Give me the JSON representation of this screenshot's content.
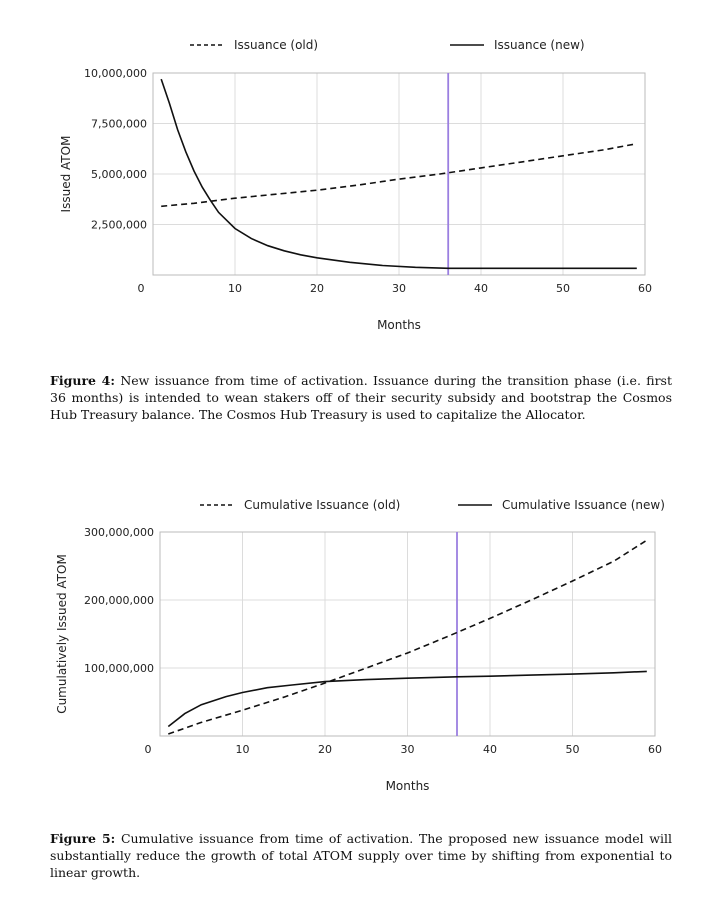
{
  "chart_data": [
    {
      "type": "line",
      "xlabel": "Months",
      "ylabel": "Issued ATOM",
      "xlim": [
        0,
        60
      ],
      "ylim": [
        0,
        10000000
      ],
      "x_ticks": [
        "0",
        "10",
        "20",
        "30",
        "40",
        "50",
        "60"
      ],
      "y_ticks": [
        "2,500,000",
        "5,000,000",
        "7,500,000",
        "10,000,000"
      ],
      "marker_line": {
        "x": 36,
        "color": "#9b7fe0"
      },
      "legend_position": "top",
      "series": [
        {
          "name": "Issuance (old)",
          "style": "dashed",
          "x": [
            1,
            5,
            10,
            15,
            20,
            25,
            30,
            35,
            40,
            45,
            50,
            55,
            59
          ],
          "y": [
            3400000,
            3550000,
            3800000,
            4000000,
            4200000,
            4450000,
            4750000,
            5000000,
            5300000,
            5600000,
            5900000,
            6200000,
            6500000
          ]
        },
        {
          "name": "Issuance (new)",
          "style": "solid",
          "x": [
            1,
            2,
            3,
            4,
            5,
            6,
            7,
            8,
            10,
            12,
            14,
            16,
            18,
            20,
            24,
            28,
            32,
            36,
            40,
            50,
            59
          ],
          "y": [
            9700000,
            8500000,
            7200000,
            6100000,
            5150000,
            4350000,
            3700000,
            3100000,
            2300000,
            1800000,
            1450000,
            1200000,
            1000000,
            850000,
            630000,
            470000,
            380000,
            330000,
            330000,
            330000,
            330000
          ]
        }
      ]
    },
    {
      "type": "line",
      "xlabel": "Months",
      "ylabel": "Cumulatively Issued ATOM",
      "xlim": [
        0,
        60
      ],
      "ylim": [
        0,
        300000000
      ],
      "x_ticks": [
        "0",
        "10",
        "20",
        "30",
        "40",
        "50",
        "60"
      ],
      "y_ticks": [
        "100,000,000",
        "200,000,000",
        "300,000,000"
      ],
      "marker_line": {
        "x": 36,
        "color": "#9b7fe0"
      },
      "legend_position": "top",
      "series": [
        {
          "name": "Cumulative Issuance (old)",
          "style": "dashed",
          "x": [
            1,
            5,
            10,
            15,
            20,
            25,
            30,
            35,
            40,
            45,
            50,
            55,
            59
          ],
          "y": [
            3000000,
            20000000,
            38000000,
            57000000,
            78000000,
            100000000,
            122000000,
            147000000,
            173000000,
            200000000,
            228000000,
            257000000,
            288000000
          ]
        },
        {
          "name": "Cumulative Issuance (new)",
          "style": "solid",
          "x": [
            1,
            3,
            5,
            8,
            10,
            13,
            16,
            20,
            25,
            30,
            36,
            40,
            45,
            50,
            55,
            59
          ],
          "y": [
            14000000,
            33000000,
            46000000,
            58000000,
            64000000,
            71000000,
            75000000,
            80000000,
            83000000,
            85000000,
            87000000,
            88000000,
            89500000,
            91000000,
            93000000,
            95000000
          ]
        }
      ]
    }
  ],
  "captions": [
    {
      "label": "Figure 4:",
      "text": "New issuance from time of activation. Issuance during the transition phase (i.e. first 36 months) is intended to wean stakers off of their security subsidy and bootstrap the Cosmos Hub Treasury balance. The Cosmos Hub Treasury is used to capitalize the Allocator."
    },
    {
      "label": "Figure 5:",
      "text": "Cumulative issuance from time of activation. The proposed new issuance model will substantially reduce the growth of total ATOM supply over time by shifting from exponential to linear growth."
    }
  ]
}
